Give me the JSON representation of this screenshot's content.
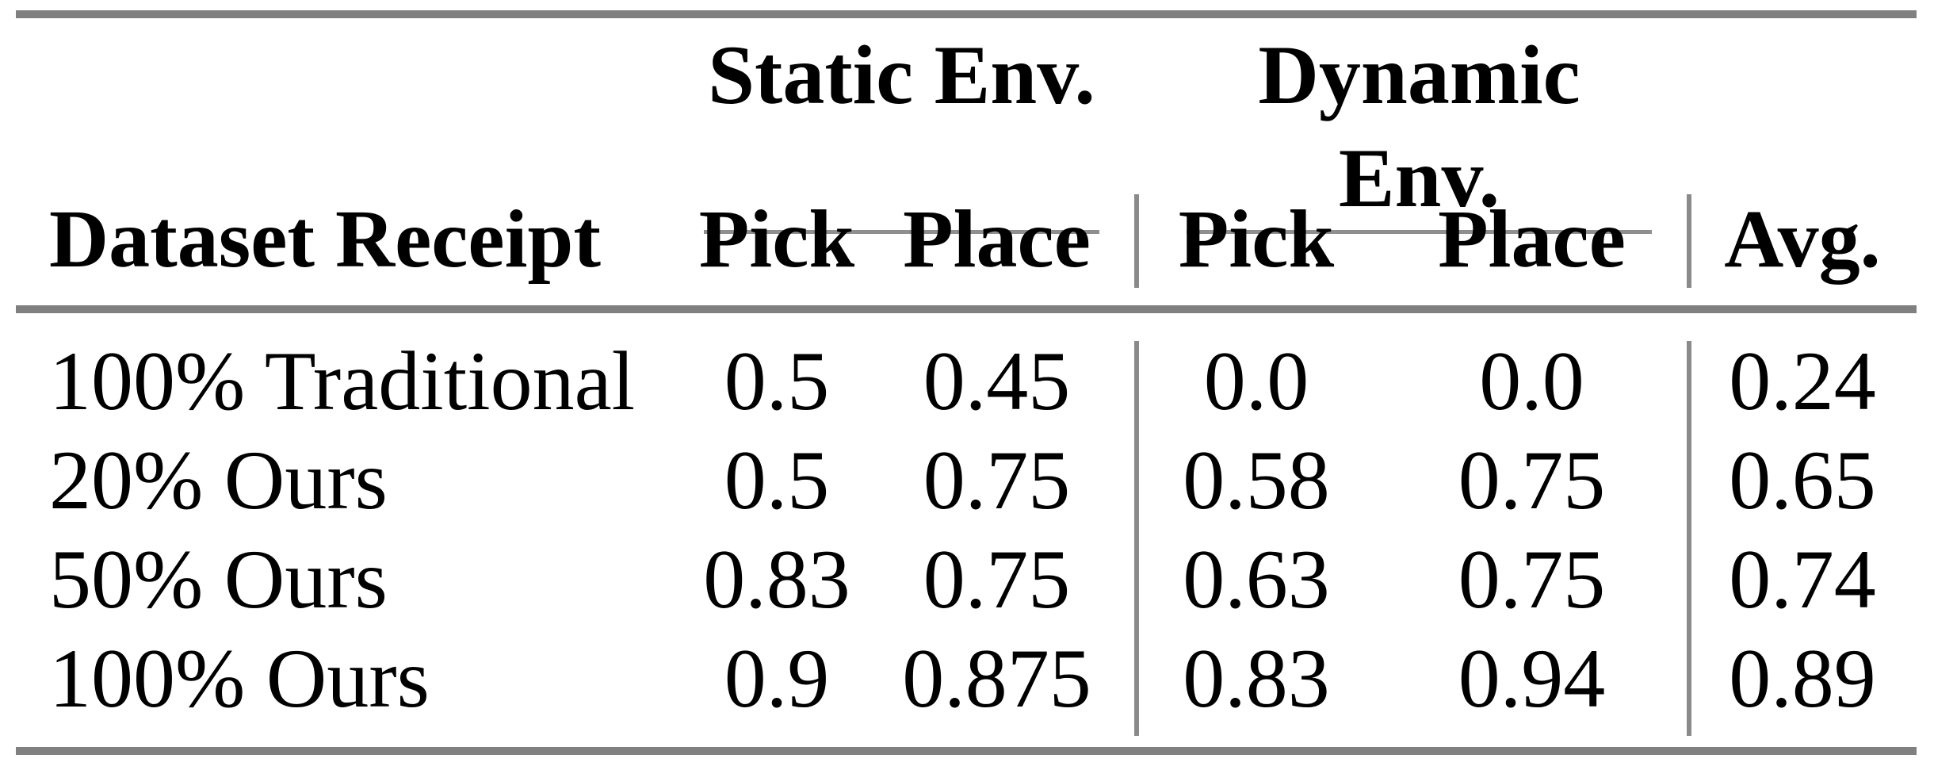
{
  "table": {
    "spanners": [
      {
        "label": "Static Env."
      },
      {
        "label": "Dynamic Env."
      }
    ],
    "columns": {
      "row_header": "Dataset Receipt",
      "static_pick": "Pick",
      "static_place": "Place",
      "dynamic_pick": "Pick",
      "dynamic_place": "Place",
      "avg": "Avg."
    },
    "rows": [
      {
        "label": "100% Traditional",
        "static_pick": "0.5",
        "static_place": "0.45",
        "dynamic_pick": "0.0",
        "dynamic_place": "0.0",
        "avg": "0.24"
      },
      {
        "label": "20% Ours",
        "static_pick": "0.5",
        "static_place": "0.75",
        "dynamic_pick": "0.58",
        "dynamic_place": "0.75",
        "avg": "0.65"
      },
      {
        "label": "50% Ours",
        "static_pick": "0.83",
        "static_place": "0.75",
        "dynamic_pick": "0.63",
        "dynamic_place": "0.75",
        "avg": "0.74"
      },
      {
        "label": "100% Ours",
        "static_pick": "0.9",
        "static_place": "0.875",
        "dynamic_pick": "0.83",
        "dynamic_place": "0.94",
        "avg": "0.89"
      }
    ],
    "colors": {
      "rule_thick": "#808080",
      "rule_thin": "#8f8f8f",
      "rule_vertical": "#8a8a8a",
      "text": "#000000",
      "background": "#ffffff"
    }
  }
}
